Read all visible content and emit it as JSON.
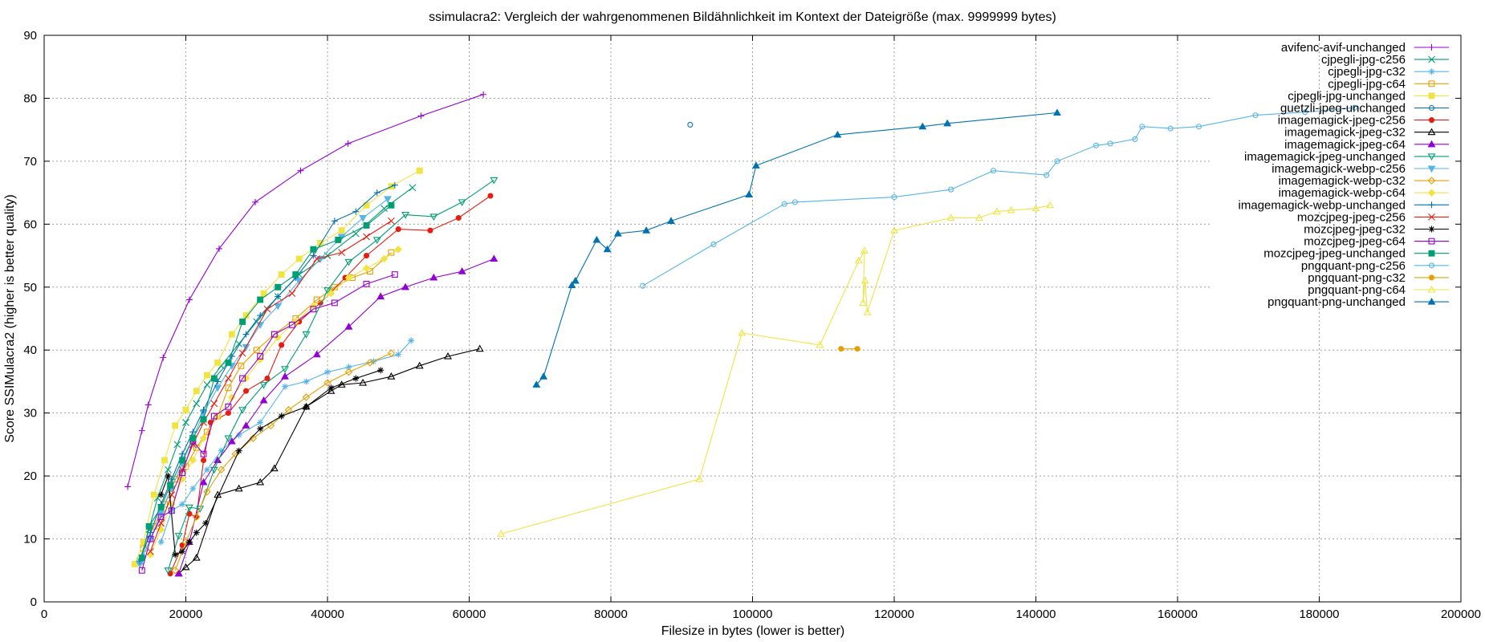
{
  "chart_data": {
    "type": "line",
    "title": "ssimulacra2: Vergleich der wahrgenommenen Bildähnlichkeit im Kontext der Dateigröße (max. 9999999 bytes)",
    "xlabel": "Filesize in bytes (lower is better)",
    "ylabel": "Score SSIMulacra2 (higher is better quality)",
    "xlim": [
      0,
      200000
    ],
    "ylim": [
      0,
      90
    ],
    "xticks": [
      0,
      20000,
      40000,
      60000,
      80000,
      100000,
      120000,
      140000,
      160000,
      180000,
      200000
    ],
    "yticks": [
      0,
      10,
      20,
      30,
      40,
      50,
      60,
      70,
      80,
      90
    ],
    "grid": true,
    "legend_position": "top-right",
    "series": [
      {
        "name": "avifenc-avif-unchanged",
        "color": "#9400d3",
        "marker": "plus",
        "x": [
          11800,
          13800,
          14700,
          16800,
          20500,
          24700,
          29800,
          36200,
          42900,
          53200,
          62000
        ],
        "y": [
          18.3,
          27.2,
          31.3,
          38.8,
          48.0,
          56.1,
          63.5,
          68.5,
          72.8,
          77.2,
          80.6
        ]
      },
      {
        "name": "cjpegli-jpg-c256",
        "color": "#009e73",
        "marker": "x",
        "x": [
          13500,
          14800,
          16000,
          17500,
          18800,
          20000,
          21500,
          23000,
          25000,
          27500,
          30000,
          33000,
          36000,
          40000,
          44000,
          48000,
          52000
        ],
        "y": [
          6.5,
          11.5,
          16.5,
          21.0,
          25.0,
          28.5,
          31.5,
          34.5,
          37.5,
          41.0,
          44.5,
          48.5,
          52.0,
          55.0,
          58.5,
          62.5,
          65.8
        ]
      },
      {
        "name": "cjpegli-jpg-c32",
        "color": "#56b4e9",
        "marker": "star",
        "x": [
          16500,
          18000,
          19500,
          21000,
          23000,
          25000,
          27500,
          30500,
          34000,
          37000,
          40000,
          43000,
          46500,
          50000,
          51800
        ],
        "y": [
          9.5,
          14.5,
          15.5,
          18.0,
          21.0,
          24.0,
          26.5,
          28.5,
          34.2,
          35.0,
          36.5,
          37.3,
          38.2,
          39.3,
          41.5
        ]
      },
      {
        "name": "cjpegli-jpg-c64",
        "color": "#e69f00",
        "marker": "square",
        "x": [
          14000,
          15500,
          17000,
          18500,
          20000,
          21500,
          23000,
          24500,
          26000,
          27800,
          30000,
          32500,
          35500,
          38500,
          41000,
          43500,
          46000,
          49000
        ],
        "y": [
          8.5,
          12.0,
          15.5,
          19.5,
          21.5,
          24.5,
          27.0,
          29.5,
          34.0,
          37.5,
          40.0,
          42.5,
          45.0,
          48.0,
          50.0,
          51.5,
          52.5,
          55.5
        ]
      },
      {
        "name": "cjpegli-jpg-unchanged",
        "color": "#f0e442",
        "marker": "fsquare",
        "x": [
          12800,
          14000,
          15500,
          17000,
          18500,
          20000,
          21500,
          23000,
          24500,
          26500,
          28500,
          31000,
          33500,
          36000,
          39000,
          42000,
          45500,
          49000,
          53000
        ],
        "y": [
          6.0,
          9.5,
          17.0,
          22.5,
          28.0,
          30.5,
          33.5,
          36.0,
          38.0,
          42.5,
          45.5,
          49.0,
          52.0,
          54.5,
          57.0,
          59.0,
          63.0,
          66.0,
          68.5
        ]
      },
      {
        "name": "guetzli-jpeg-unchanged",
        "color": "#0072b2",
        "marker": "circle",
        "x": [
          91200
        ],
        "y": [
          75.8
        ]
      },
      {
        "name": "imagemagick-jpeg-c256",
        "color": "#e51e10",
        "marker": "fcircle",
        "x": [
          17800,
          19500,
          20500,
          21500,
          22500,
          23500,
          26000,
          28500,
          31500,
          33500,
          36000,
          39000,
          42500,
          45500,
          50000,
          54500,
          58500,
          63000
        ],
        "y": [
          4.5,
          9.0,
          14.0,
          13.5,
          22.5,
          28.5,
          30.0,
          33.5,
          35.5,
          40.8,
          44.5,
          47.5,
          51.5,
          55.0,
          59.2,
          59.0,
          61.0,
          64.5
        ]
      },
      {
        "name": "imagemagick-jpeg-c32",
        "color": "#000000",
        "marker": "triangle",
        "x": [
          19000,
          20000,
          21500,
          24500,
          27500,
          30500,
          32500,
          37000,
          40500,
          42000,
          45000,
          49000,
          53000,
          57000,
          61500
        ],
        "y": [
          4.5,
          5.5,
          7.0,
          17.0,
          18.0,
          19.0,
          21.2,
          31.0,
          33.5,
          34.5,
          34.8,
          35.8,
          37.5,
          39.0,
          40.2
        ]
      },
      {
        "name": "imagemagick-jpeg-c64",
        "color": "#9400d3",
        "marker": "ftriangle",
        "x": [
          19000,
          20500,
          22500,
          24500,
          26500,
          28500,
          31000,
          34000,
          38500,
          43000,
          47500,
          51000,
          55000,
          59000,
          63500
        ],
        "y": [
          4.5,
          9.5,
          19.0,
          22.5,
          25.5,
          28.0,
          32.0,
          35.8,
          39.3,
          43.7,
          48.5,
          50.0,
          51.5,
          52.5,
          54.5
        ]
      },
      {
        "name": "imagemagick-jpeg-unchanged",
        "color": "#009e73",
        "marker": "dtriangle",
        "x": [
          17500,
          19000,
          20500,
          22000,
          24000,
          26000,
          28000,
          31000,
          34000,
          37000,
          40000,
          43000,
          47000,
          51000,
          55000,
          59000,
          63500
        ],
        "y": [
          5.0,
          10.5,
          15.0,
          14.8,
          21.0,
          26.0,
          30.5,
          34.5,
          37.0,
          42.5,
          49.5,
          54.0,
          57.5,
          61.5,
          61.2,
          63.5,
          67.0
        ]
      },
      {
        "name": "imagemagick-webp-c256",
        "color": "#56b4e9",
        "marker": "fdtriangle",
        "x": [
          13500,
          15000,
          16500,
          18000,
          19500,
          21000,
          22500,
          24500,
          26500,
          28500,
          30500,
          33000,
          36000,
          39000,
          42000,
          45000,
          48500
        ],
        "y": [
          6.0,
          10.0,
          14.0,
          18.0,
          22.0,
          26.0,
          30.0,
          34.0,
          37.5,
          40.5,
          44.0,
          47.0,
          51.0,
          54.5,
          58.0,
          61.0,
          64.0
        ]
      },
      {
        "name": "imagemagick-webp-c32",
        "color": "#e69f00",
        "marker": "diamond",
        "x": [
          18500,
          20000,
          21500,
          23000,
          25000,
          27000,
          29500,
          32000,
          34500,
          37000,
          40000,
          43000,
          46000,
          49000
        ],
        "y": [
          5.0,
          9.5,
          13.5,
          17.5,
          21.0,
          23.5,
          26.0,
          28.0,
          30.5,
          32.5,
          34.8,
          36.5,
          38.0,
          39.5
        ]
      },
      {
        "name": "imagemagick-webp-c64",
        "color": "#f0e442",
        "marker": "fdiamond",
        "x": [
          15000,
          16500,
          18000,
          19500,
          21000,
          22500,
          24500,
          26500,
          28500,
          30500,
          33000,
          35500,
          38000,
          40500,
          43000,
          45500,
          48000,
          50000
        ],
        "y": [
          7.5,
          11.5,
          15.5,
          19.5,
          22.5,
          26.0,
          29.5,
          32.5,
          35.5,
          38.5,
          42.0,
          44.5,
          47.0,
          49.0,
          51.5,
          53.0,
          54.5,
          56.0
        ]
      },
      {
        "name": "imagemagick-webp-unchanged",
        "color": "#0072b2",
        "marker": "plus",
        "x": [
          13500,
          15000,
          16500,
          18000,
          19500,
          21000,
          22500,
          24500,
          26500,
          28500,
          30500,
          33000,
          35500,
          38000,
          41000,
          44000,
          47000,
          49500
        ],
        "y": [
          6.5,
          11.0,
          15.5,
          19.5,
          23.5,
          27.0,
          30.5,
          35.0,
          39.0,
          42.5,
          45.5,
          48.5,
          51.5,
          55.0,
          60.5,
          62.0,
          65.0,
          66.2
        ]
      },
      {
        "name": "mozcjpeg-jpeg-c256",
        "color": "#e51e10",
        "marker": "x",
        "x": [
          15000,
          16500,
          18000,
          19500,
          21000,
          22500,
          24000,
          26000,
          28000,
          31500,
          35000,
          38500,
          42000,
          45500,
          49000
        ],
        "y": [
          8.0,
          12.5,
          17.0,
          21.0,
          25.0,
          28.5,
          31.5,
          35.5,
          39.5,
          46.5,
          49.0,
          54.5,
          55.5,
          58.0,
          60.5
        ]
      },
      {
        "name": "mozcjpeg-jpeg-c32",
        "color": "#000000",
        "marker": "star",
        "x": [
          16500,
          17500,
          18500,
          19500,
          20500,
          21500,
          22800,
          27500,
          30500,
          33500,
          37000,
          40500,
          44000,
          47500
        ],
        "y": [
          17.0,
          20.0,
          7.5,
          8.0,
          9.5,
          11.0,
          12.5,
          24.0,
          27.5,
          29.5,
          31.0,
          34.0,
          35.5,
          36.8
        ]
      },
      {
        "name": "mozcjpeg-jpeg-c64",
        "color": "#9400d3",
        "marker": "square",
        "x": [
          13800,
          15000,
          16500,
          18000,
          19500,
          21000,
          22500,
          24000,
          26000,
          28000,
          30500,
          32500,
          35000,
          38000,
          41000,
          45500,
          49500
        ],
        "y": [
          5.0,
          10.0,
          13.5,
          14.5,
          20.5,
          25.5,
          23.5,
          29.5,
          31.0,
          35.5,
          39.0,
          42.5,
          44.0,
          46.5,
          47.5,
          50.5,
          52.0
        ]
      },
      {
        "name": "mozcjpeg-jpeg-unchanged",
        "color": "#009e73",
        "marker": "fsquare",
        "x": [
          13800,
          14800,
          16500,
          17800,
          19500,
          21000,
          22500,
          24000,
          26000,
          28000,
          30500,
          33000,
          35500,
          38000,
          41500,
          45500,
          49000
        ],
        "y": [
          7.0,
          12.0,
          15.0,
          18.5,
          22.5,
          26.0,
          29.0,
          35.5,
          38.0,
          44.5,
          48.0,
          50.0,
          52.0,
          56.0,
          57.5,
          59.8,
          63.0
        ]
      },
      {
        "name": "pngquant-png-c256",
        "color": "#56b4e9",
        "marker": "circle",
        "x": [
          84500,
          94500,
          104500,
          106000,
          120000,
          128000,
          134000,
          141500,
          143000,
          148500,
          150500,
          154000,
          155000,
          159000,
          163000,
          171000,
          178000,
          185000
        ],
        "y": [
          50.2,
          56.8,
          63.2,
          63.5,
          64.3,
          65.5,
          68.5,
          67.8,
          70.0,
          72.5,
          72.8,
          73.5,
          75.5,
          75.2,
          75.5,
          77.3,
          77.8,
          78.5
        ]
      },
      {
        "name": "pngquant-png-c32",
        "color": "#e69f00",
        "marker": "fcircle",
        "x": [
          112500,
          114800
        ],
        "y": [
          40.2,
          40.2
        ]
      },
      {
        "name": "pngquant-png-c64",
        "color": "#f0e442",
        "marker": "triangle",
        "x": [
          64500,
          92500,
          98500,
          109500,
          115000,
          115800,
          115600,
          115900,
          116200,
          120000,
          128000,
          132000,
          134500,
          136500,
          140000,
          142000
        ],
        "y": [
          10.8,
          19.5,
          42.7,
          40.8,
          54.2,
          55.8,
          47.5,
          51.0,
          46.0,
          59.0,
          61.0,
          61.0,
          62.0,
          62.2,
          62.5,
          63.0
        ]
      },
      {
        "name": "pngquant-png-unchanged",
        "color": "#0072b2",
        "marker": "ftriangle",
        "x": [
          69500,
          70500,
          74500,
          75000,
          78000,
          79500,
          81000,
          85000,
          88500,
          99500,
          100500,
          112000,
          124000,
          127500,
          143000
        ],
        "y": [
          34.5,
          35.8,
          50.3,
          51.0,
          57.5,
          56.0,
          58.5,
          59.0,
          60.5,
          64.7,
          69.3,
          74.2,
          75.5,
          76.0,
          77.7
        ]
      }
    ]
  }
}
